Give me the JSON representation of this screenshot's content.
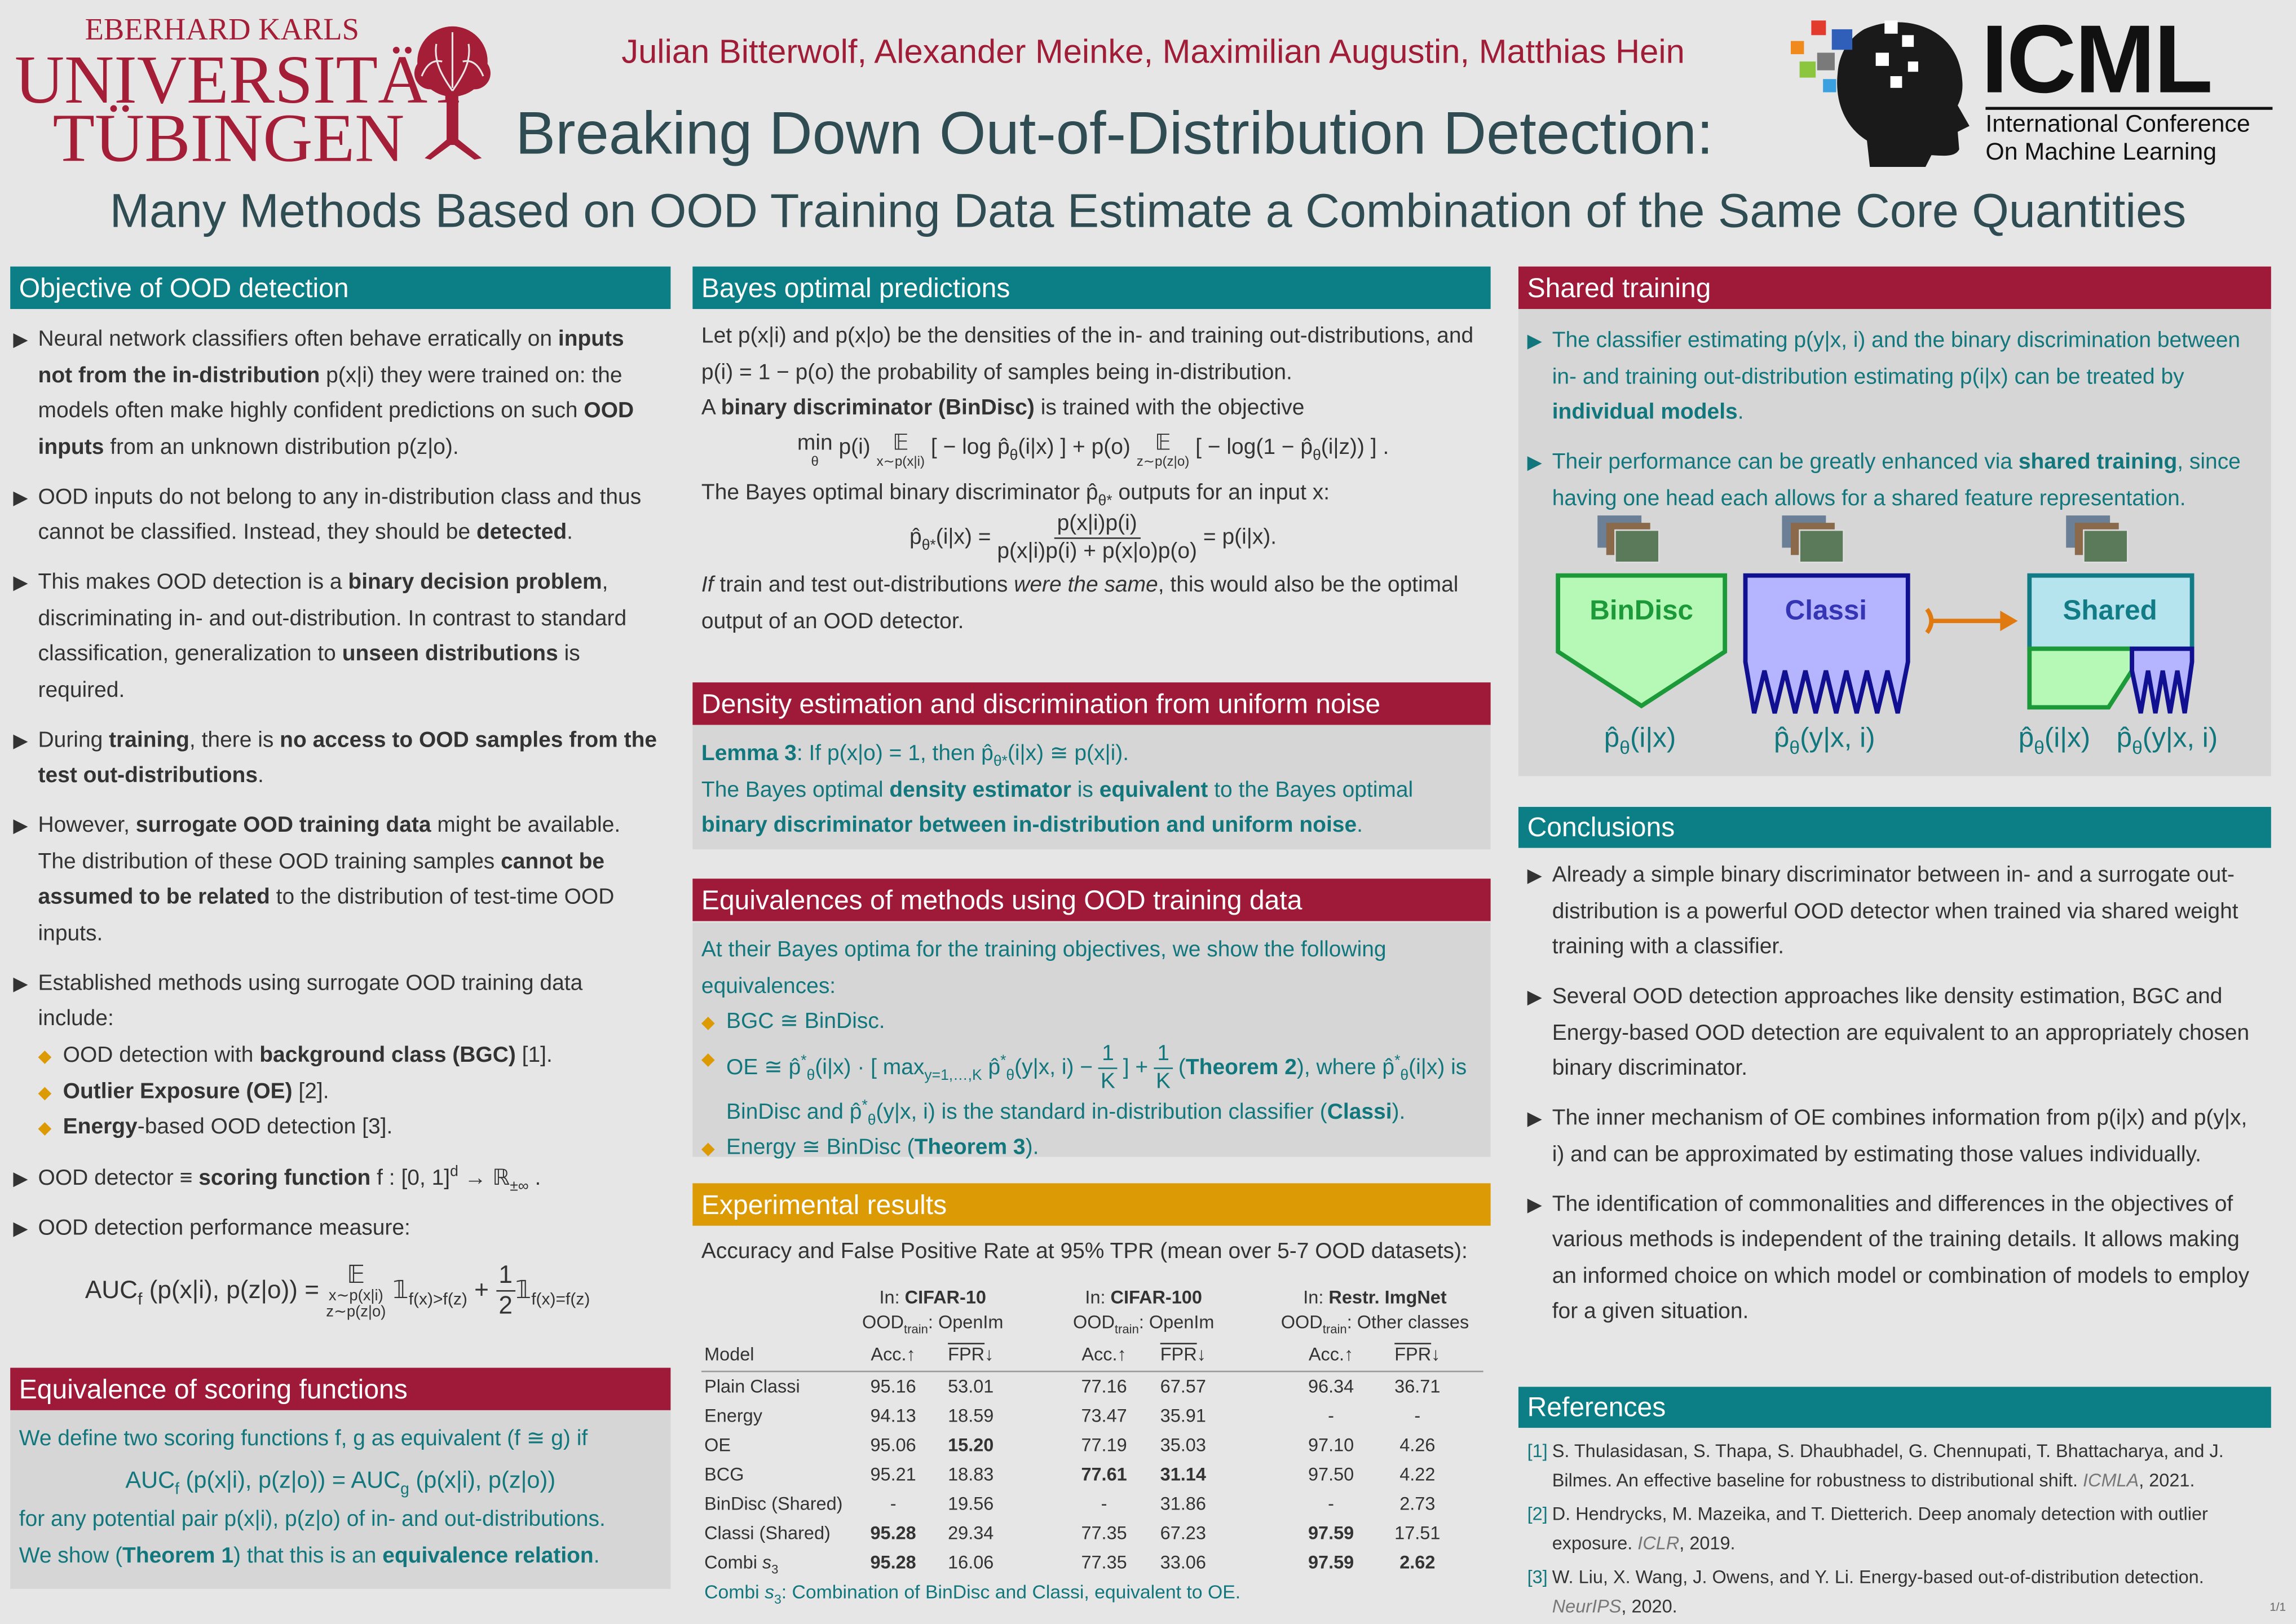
{
  "header": {
    "university": {
      "line1": "EBERHARD KARLS",
      "line2": "UNIVERSITÄT",
      "line3": "TÜBINGEN"
    },
    "authors": "Julian Bitterwolf, Alexander Meinke, Maximilian Augustin, Matthias Hein",
    "title": "Breaking Down Out-of-Distribution Detection:",
    "subtitle": "Many Methods Based on OOD Training Data Estimate a Combination of the Same Core Quantities",
    "conference": {
      "acronym": "ICML",
      "line1": "International Conference",
      "line2": "On Machine Learning"
    }
  },
  "objective": {
    "title": "Objective of OOD detection",
    "bullets": [
      [
        "Neural network classifiers often behave erratically on ",
        {
          "bold": "inputs not from the in-distribution"
        },
        " p(x|i) they were trained on: the models often make highly confident predictions on such ",
        {
          "bold": "OOD inputs"
        },
        " from an unknown distribution p(z|o)."
      ],
      [
        "OOD inputs do not belong to any in-distribution class and thus cannot be classified. Instead, they should be ",
        {
          "bold": "detected"
        },
        "."
      ],
      [
        "This makes OOD detection is a ",
        {
          "bold": "binary decision problem"
        },
        ", discriminating in- and out-distribution. In contrast to standard classification, generalization to ",
        {
          "bold": "unseen distributions"
        },
        " is required."
      ],
      [
        "During ",
        {
          "bold": "training"
        },
        ", there is ",
        {
          "bold": "no access to OOD samples from the test out-distributions"
        },
        "."
      ],
      [
        "However, ",
        {
          "bold": "surrogate OOD training data"
        },
        " might be available. The distribution of these OOD training samples ",
        {
          "bold": "cannot be assumed to be related"
        },
        " to the distribution of test-time OOD inputs."
      ],
      [
        "Established methods using surrogate OOD training data include:"
      ]
    ],
    "methods": [
      [
        "OOD detection with ",
        {
          "bold": "background class (BGC)"
        },
        " [1]."
      ],
      [
        {
          "bold": "Outlier Exposure (OE)"
        },
        " [2]."
      ],
      [
        {
          "bold": "Energy"
        },
        "-based OOD detection [3]."
      ]
    ],
    "bullets_after": [
      [
        "OOD detector ≡ ",
        {
          "bold": "scoring function"
        },
        "  f : [0, 1]",
        {
          "sup": "d"
        },
        " → ℝ",
        {
          "sub": "±∞"
        },
        " ."
      ],
      [
        "OOD detection performance measure:"
      ]
    ],
    "measure": [
      "AUC",
      {
        "sub": "f"
      },
      " (p(x|i), p(z|o)) = ",
      {
        "top": "𝔼",
        "bottom": "x∼p(x|i)",
        "below": "z∼p(z|o)"
      },
      " 𝟙",
      {
        "sub": "f(x)>f(z)"
      },
      " + ",
      {
        "num": "1",
        "den": "2"
      },
      "𝟙",
      {
        "sub": "f(x)=f(z)"
      }
    ]
  },
  "scoring": {
    "title": "Equivalence of scoring functions",
    "definition": [
      "We define two scoring functions f, g as equivalent (f ≅ g) if"
    ],
    "formula": [
      "AUC",
      {
        "sub": "f"
      },
      " (p(x|i), p(z|o)) = AUC",
      {
        "sub": "g"
      },
      " (p(x|i), p(z|o))"
    ],
    "condition": [
      "for any potential pair p(x|i), p(z|o) of in- and out-distributions."
    ],
    "result": [
      "We show (",
      {
        "bold": "Theorem 1"
      },
      ") that this is an ",
      {
        "bold": "equivalence relation"
      },
      "."
    ]
  },
  "bayes": {
    "title": "Bayes optimal predictions",
    "p1": [
      "Let p(x|i) and p(x|o) be the densities of the in- and training out-distributions, and p(i) = 1 − p(o) the probability of samples being in-distribution."
    ],
    "p2": [
      "A ",
      {
        "bold": "binary discriminator (BinDisc)"
      },
      " is trained with the objective"
    ],
    "objective": [
      {
        "top": "min",
        "bottom": "θ"
      },
      "   p(i) ",
      {
        "top": "𝔼",
        "bottom": "x∼p(x|i)"
      },
      " [ − log p̂",
      {
        "sub": "θ"
      },
      "(i|x) ]  +  p(o) ",
      {
        "top": "𝔼",
        "bottom": "z∼p(z|o)"
      },
      " [ − log(1 − p̂",
      {
        "sub": "θ"
      },
      "(i|z)) ] ."
    ],
    "p3": [
      "The Bayes optimal binary discriminator p̂",
      {
        "sub": "θ*"
      },
      " outputs for an input x:"
    ],
    "optimum": [
      "p̂",
      {
        "sub": "θ*"
      },
      "(i|x) = ",
      {
        "num": "p(x|i)p(i)",
        "den": "p(x|i)p(i) + p(x|o)p(o)"
      },
      " = p(i|x)."
    ],
    "p4": [
      {
        "italic": "If"
      },
      " train and test out-distributions ",
      {
        "italic": "were the same"
      },
      ", this would also be the optimal output of an OOD detector."
    ]
  },
  "density": {
    "title": "Density estimation and discrimination from uniform noise",
    "lemma": [
      {
        "bold": "Lemma 3"
      },
      ": If p(x|o) = 1, then p̂",
      {
        "sub": "θ*"
      },
      "(i|x) ≅ p(x|i)."
    ],
    "statement": [
      "The Bayes optimal ",
      {
        "bold": "density estimator"
      },
      " is ",
      {
        "bold": "equivalent"
      },
      " to the Bayes optimal ",
      {
        "bold": "binary discriminator between in-distribution and uniform noise"
      },
      "."
    ]
  },
  "equivalences": {
    "title": "Equivalences of methods using OOD training data",
    "intro": [
      "At their Bayes optima for the training objectives, we show the following equivalences:"
    ],
    "items": [
      [
        "BGC ≅ BinDisc."
      ],
      [
        "OE ≅ p̂",
        {
          "sup": "*"
        },
        {
          "sub": "θ"
        },
        "(i|x) · [ max",
        {
          "sub": "y=1,…,K"
        },
        " p̂",
        {
          "sup": "*"
        },
        {
          "sub": "θ"
        },
        "(y|x, i) − ",
        {
          "num": "1",
          "den": "K"
        },
        " ] + ",
        {
          "num": "1",
          "den": "K"
        },
        " (",
        {
          "bold": "Theorem 2"
        },
        "),  where p̂",
        {
          "sup": "*"
        },
        {
          "sub": "θ"
        },
        "(i|x) is BinDisc and p̂",
        {
          "sup": "*"
        },
        {
          "sub": "θ"
        },
        "(y|x, i) is the standard in-distribution classifier (",
        {
          "bold": "Classi"
        },
        ")."
      ],
      [
        "Energy ≅ BinDisc (",
        {
          "bold": "Theorem 3"
        },
        ")."
      ]
    ]
  },
  "results": {
    "title": "Experimental results",
    "caption": "Accuracy and False Positive Rate at 95% TPR (mean over 5-7 OOD datasets):",
    "groups": [
      {
        "in": [
          "In: ",
          {
            "bold": "CIFAR-10"
          }
        ],
        "train": [
          "OOD",
          {
            "sub": "train"
          },
          ": OpenIm"
        ]
      },
      {
        "in": [
          "In: ",
          {
            "bold": "CIFAR-100"
          }
        ],
        "train": [
          "OOD",
          {
            "sub": "train"
          },
          ": OpenIm"
        ]
      },
      {
        "in": [
          "In: ",
          {
            "bold": "Restr. ImgNet"
          }
        ],
        "train": [
          "OOD",
          {
            "sub": "train"
          },
          ": Other classes"
        ]
      }
    ],
    "columns": [
      [
        "Model"
      ],
      [
        "Acc.↑"
      ],
      [
        {
          "overline": "FPR"
        },
        "↓"
      ],
      [
        "Acc.↑"
      ],
      [
        {
          "overline": "FPR"
        },
        "↓"
      ],
      [
        "Acc.↑"
      ],
      [
        {
          "overline": "FPR"
        },
        "↓"
      ]
    ],
    "rows": [
      {
        "model": [
          "Plain Classi"
        ],
        "cells": [
          "95.16",
          "53.01",
          "77.16",
          "67.57",
          "96.34",
          "36.71"
        ]
      },
      {
        "model": [
          "Energy"
        ],
        "cells": [
          "94.13",
          "18.59",
          "73.47",
          "35.91",
          "-",
          "-"
        ]
      },
      {
        "model": [
          "OE"
        ],
        "cells": [
          "95.06",
          {
            "bold": "15.20"
          },
          "77.19",
          "35.03",
          "97.10",
          "4.26"
        ]
      },
      {
        "model": [
          "BCG"
        ],
        "cells": [
          "95.21",
          "18.83",
          {
            "bold": "77.61"
          },
          {
            "bold": "31.14"
          },
          "97.50",
          "4.22"
        ]
      },
      {
        "model": [
          "BinDisc (Shared)"
        ],
        "cells": [
          "-",
          "19.56",
          "-",
          "31.86",
          "-",
          "2.73"
        ]
      },
      {
        "model": [
          "Classi (Shared)"
        ],
        "cells": [
          {
            "bold": "95.28"
          },
          "29.34",
          "77.35",
          "67.23",
          {
            "bold": "97.59"
          },
          "17.51"
        ]
      },
      {
        "model": [
          "Combi ",
          {
            "italic": "s"
          },
          {
            "sub": "3"
          }
        ],
        "cells": [
          {
            "bold": "95.28"
          },
          "16.06",
          "77.35",
          "33.06",
          {
            "bold": "97.59"
          },
          {
            "bold": "2.62"
          }
        ]
      }
    ],
    "footnote": [
      "Combi ",
      {
        "italic": "s"
      },
      {
        "sub": "3"
      },
      ": Combination of BinDisc and Classi, equivalent to OE."
    ]
  },
  "shared": {
    "title": "Shared training",
    "bullets": [
      [
        "The classifier estimating p(y|x, i) and the binary discrimination between in- and training out-distribution estimating p(i|x) can be treated by ",
        {
          "bold": "individual models"
        },
        "."
      ],
      [
        "Their performance can be greatly enhanced via ",
        {
          "bold": "shared training"
        },
        ", since having one head each allows for a shared feature representation."
      ]
    ],
    "diagram": {
      "bindisc": "BinDisc",
      "classi": "Classi",
      "shared": "Shared",
      "outputs": [
        [
          "p̂",
          {
            "sub": "θ"
          },
          "(i|x)"
        ],
        [
          "p̂",
          {
            "sub": "θ"
          },
          "(y|x, i)"
        ],
        [
          "p̂",
          {
            "sub": "θ"
          },
          "(i|x)"
        ],
        [
          "p̂",
          {
            "sub": "θ"
          },
          "(y|x, i)"
        ]
      ]
    }
  },
  "conclusions": {
    "title": "Conclusions",
    "bullets": [
      [
        "Already a simple binary discriminator between in- and a surrogate out-distribution is a powerful OOD detector when trained via shared weight training with a classifier."
      ],
      [
        "Several OOD detection approaches like density estimation, BGC and Energy-based OOD detection are equivalent to an appropriately chosen binary discriminator."
      ],
      [
        "The inner mechanism of OE combines information from p(i|x) and p(y|x, i) and can be approximated by estimating those values individually."
      ],
      [
        "The identification of commonalities and differences in the objectives of various methods is independent of the training details. It allows making an informed choice on which model or combination of models to employ for a given situation."
      ]
    ]
  },
  "references": {
    "title": "References",
    "items": [
      {
        "label": "[1]",
        "text": [
          "S. Thulasidasan, S. Thapa, S. Dhaubhadel, G. Chennupati, T. Bhattacharya, and J. Bilmes. An effective baseline for robustness to distributional shift. ",
          {
            "italic": "ICMLA"
          },
          ", 2021."
        ]
      },
      {
        "label": "[2]",
        "text": [
          "D. Hendrycks, M. Mazeika, and T. Dietterich. Deep anomaly detection with outlier exposure. ",
          {
            "italic": "ICLR"
          },
          ", 2019."
        ]
      },
      {
        "label": "[3]",
        "text": [
          "W. Liu, X. Wang, J. Owens, and Y. Li. Energy-based out-of-distribution detection. ",
          {
            "italic": "NeurIPS"
          },
          ", 2020."
        ]
      }
    ]
  },
  "page_number": "1/1"
}
